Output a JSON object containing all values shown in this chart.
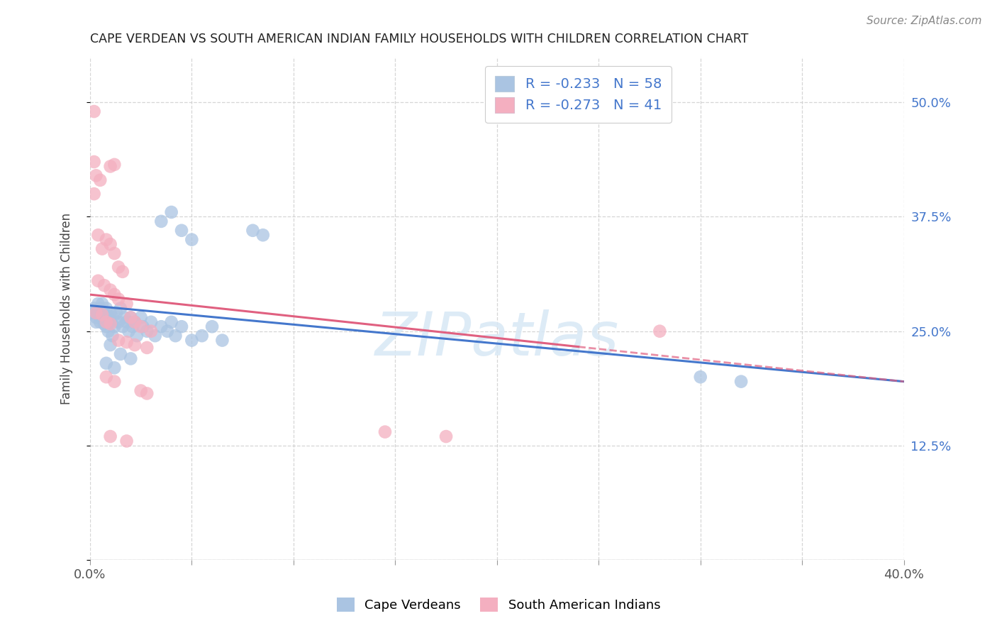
{
  "title": "CAPE VERDEAN VS SOUTH AMERICAN INDIAN FAMILY HOUSEHOLDS WITH CHILDREN CORRELATION CHART",
  "source": "Source: ZipAtlas.com",
  "ylabel": "Family Households with Children",
  "xlim": [
    0.0,
    0.4
  ],
  "ylim": [
    0.0,
    0.55
  ],
  "x_ticks": [
    0.0,
    0.05,
    0.1,
    0.15,
    0.2,
    0.25,
    0.3,
    0.35,
    0.4
  ],
  "x_tick_labels": [
    "0.0%",
    "",
    "",
    "",
    "",
    "",
    "",
    "",
    "40.0%"
  ],
  "y_ticks": [
    0.0,
    0.125,
    0.25,
    0.375,
    0.5
  ],
  "y_tick_labels_right": [
    "",
    "12.5%",
    "25.0%",
    "37.5%",
    "50.0%"
  ],
  "watermark": "ZIPatlas",
  "blue_color": "#aac4e2",
  "pink_color": "#f4afc0",
  "blue_line_color": "#4477cc",
  "pink_line_color": "#e06080",
  "blue_scatter": [
    [
      0.001,
      0.27
    ],
    [
      0.002,
      0.275
    ],
    [
      0.003,
      0.265
    ],
    [
      0.003,
      0.26
    ],
    [
      0.004,
      0.28
    ],
    [
      0.004,
      0.27
    ],
    [
      0.005,
      0.275
    ],
    [
      0.005,
      0.26
    ],
    [
      0.006,
      0.265
    ],
    [
      0.006,
      0.28
    ],
    [
      0.007,
      0.27
    ],
    [
      0.007,
      0.258
    ],
    [
      0.008,
      0.275
    ],
    [
      0.008,
      0.255
    ],
    [
      0.009,
      0.265
    ],
    [
      0.009,
      0.25
    ],
    [
      0.01,
      0.27
    ],
    [
      0.01,
      0.26
    ],
    [
      0.011,
      0.265
    ],
    [
      0.011,
      0.245
    ],
    [
      0.012,
      0.255
    ],
    [
      0.013,
      0.27
    ],
    [
      0.014,
      0.26
    ],
    [
      0.015,
      0.275
    ],
    [
      0.016,
      0.255
    ],
    [
      0.017,
      0.265
    ],
    [
      0.018,
      0.26
    ],
    [
      0.019,
      0.25
    ],
    [
      0.02,
      0.265
    ],
    [
      0.021,
      0.255
    ],
    [
      0.022,
      0.26
    ],
    [
      0.023,
      0.245
    ],
    [
      0.025,
      0.265
    ],
    [
      0.026,
      0.255
    ],
    [
      0.028,
      0.25
    ],
    [
      0.03,
      0.26
    ],
    [
      0.032,
      0.245
    ],
    [
      0.035,
      0.255
    ],
    [
      0.038,
      0.25
    ],
    [
      0.04,
      0.26
    ],
    [
      0.042,
      0.245
    ],
    [
      0.045,
      0.255
    ],
    [
      0.05,
      0.24
    ],
    [
      0.055,
      0.245
    ],
    [
      0.06,
      0.255
    ],
    [
      0.065,
      0.24
    ],
    [
      0.01,
      0.235
    ],
    [
      0.015,
      0.225
    ],
    [
      0.02,
      0.22
    ],
    [
      0.008,
      0.215
    ],
    [
      0.012,
      0.21
    ],
    [
      0.035,
      0.37
    ],
    [
      0.04,
      0.38
    ],
    [
      0.045,
      0.36
    ],
    [
      0.05,
      0.35
    ],
    [
      0.08,
      0.36
    ],
    [
      0.085,
      0.355
    ],
    [
      0.3,
      0.2
    ],
    [
      0.32,
      0.195
    ]
  ],
  "pink_scatter": [
    [
      0.002,
      0.49
    ],
    [
      0.002,
      0.435
    ],
    [
      0.01,
      0.43
    ],
    [
      0.012,
      0.432
    ],
    [
      0.003,
      0.42
    ],
    [
      0.005,
      0.415
    ],
    [
      0.002,
      0.4
    ],
    [
      0.004,
      0.355
    ],
    [
      0.008,
      0.35
    ],
    [
      0.01,
      0.345
    ],
    [
      0.006,
      0.34
    ],
    [
      0.012,
      0.335
    ],
    [
      0.014,
      0.32
    ],
    [
      0.016,
      0.315
    ],
    [
      0.004,
      0.305
    ],
    [
      0.007,
      0.3
    ],
    [
      0.01,
      0.295
    ],
    [
      0.012,
      0.29
    ],
    [
      0.014,
      0.285
    ],
    [
      0.018,
      0.28
    ],
    [
      0.003,
      0.27
    ],
    [
      0.006,
      0.268
    ],
    [
      0.008,
      0.26
    ],
    [
      0.01,
      0.258
    ],
    [
      0.02,
      0.265
    ],
    [
      0.022,
      0.26
    ],
    [
      0.025,
      0.255
    ],
    [
      0.03,
      0.25
    ],
    [
      0.014,
      0.24
    ],
    [
      0.018,
      0.238
    ],
    [
      0.022,
      0.235
    ],
    [
      0.028,
      0.232
    ],
    [
      0.008,
      0.2
    ],
    [
      0.012,
      0.195
    ],
    [
      0.025,
      0.185
    ],
    [
      0.028,
      0.182
    ],
    [
      0.01,
      0.135
    ],
    [
      0.018,
      0.13
    ],
    [
      0.28,
      0.25
    ],
    [
      0.145,
      0.14
    ],
    [
      0.175,
      0.135
    ]
  ],
  "blue_legend_color": "#aac4e2",
  "pink_legend_color": "#f4afc0",
  "legend_text_color": "#4477cc"
}
